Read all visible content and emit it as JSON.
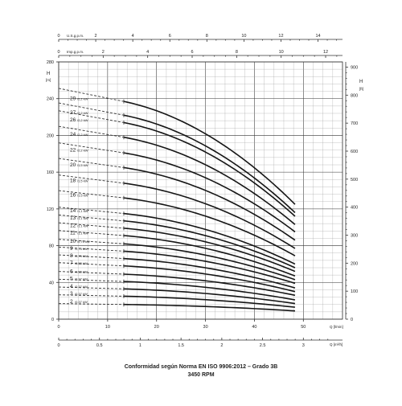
{
  "chart_data": {
    "type": "line",
    "title": "Conformidad según Norma EN ISO 9906:2012 – Grado 3B",
    "subtitle": "3450 RPM",
    "ylabel_left": "H",
    "ylabel_left_unit": "[m]",
    "ylabel_right": "H",
    "ylabel_right_unit": "[ft]",
    "xlabel_bottom": "Q [m³/h]",
    "xlabel_bottom_short": "Q [l/min]",
    "top_axis_1_label": "U.S.g.p.m.",
    "top_axis_2_label": "Imp.g.p.m.",
    "ylim_m": [
      0,
      280
    ],
    "ylim_ft": [
      0,
      918
    ],
    "xlim_lmin": [
      0,
      58
    ],
    "grid": true,
    "y_ticks_m": [
      "0",
      "40",
      "80",
      "120",
      "160",
      "200",
      "240",
      "280"
    ],
    "y_ticks_ft": [
      "0",
      "100",
      "200",
      "300",
      "400",
      "500",
      "600",
      "700",
      "800",
      "900"
    ],
    "x_ticks_lmin": [
      "0",
      "10",
      "20",
      "30",
      "40",
      "50"
    ],
    "x_ticks_m3h": [
      "0",
      "0.5",
      "1",
      "1.5",
      "2",
      "2.5",
      "3"
    ],
    "x_ticks_usgpm": [
      "0",
      "2",
      "4",
      "6",
      "8",
      "10",
      "12",
      "14"
    ],
    "x_ticks_impgpm": [
      "0",
      "2",
      "4",
      "6",
      "8",
      "10",
      "12"
    ],
    "q_range_lmin": [
      13.3,
      48.3
    ],
    "series": [
      {
        "name": "29",
        "power": "2,2 kW",
        "h_start": 237,
        "h_end": 125
      },
      {
        "name": "27",
        "power": "2,2 kW",
        "h_start": 222,
        "h_end": 116
      },
      {
        "name": "26",
        "power": "2,2 kW",
        "h_start": 214,
        "h_end": 112
      },
      {
        "name": "24",
        "power": "2,2 kW",
        "h_start": 198,
        "h_end": 103
      },
      {
        "name": "22",
        "power": "2,2 kW",
        "h_start": 181,
        "h_end": 95
      },
      {
        "name": "20",
        "power": "1,5 kW",
        "h_start": 165,
        "h_end": 86
      },
      {
        "name": "18",
        "power": "1,5 kW",
        "h_start": 148,
        "h_end": 77
      },
      {
        "name": "16",
        "power": "1,5 kW",
        "h_start": 132,
        "h_end": 69
      },
      {
        "name": "14",
        "power": "1,1 kW",
        "h_start": 115,
        "h_end": 60
      },
      {
        "name": "13",
        "power": "1,1 kW",
        "h_start": 107,
        "h_end": 56
      },
      {
        "name": "12",
        "power": "1,1 kW",
        "h_start": 99,
        "h_end": 52
      },
      {
        "name": "11",
        "power": "1,1 kW",
        "h_start": 91,
        "h_end": 47
      },
      {
        "name": "10",
        "power": "0,75 kW",
        "h_start": 82,
        "h_end": 43
      },
      {
        "name": "9",
        "power": "0,75 kW",
        "h_start": 74,
        "h_end": 39
      },
      {
        "name": "8",
        "power": "0,75 kW",
        "h_start": 66,
        "h_end": 34
      },
      {
        "name": "7",
        "power": "0,55 kW",
        "h_start": 58,
        "h_end": 30
      },
      {
        "name": "6",
        "power": "0,55 kW",
        "h_start": 49,
        "h_end": 26
      },
      {
        "name": "5",
        "power": "0,37 kW",
        "h_start": 41,
        "h_end": 21
      },
      {
        "name": "4",
        "power": "0,37 kW",
        "h_start": 33,
        "h_end": 17
      },
      {
        "name": "3",
        "power": "0,37 kW",
        "h_start": 25,
        "h_end": 13
      },
      {
        "name": "2",
        "power": "0,37 kW",
        "h_start": 16,
        "h_end": 9
      }
    ]
  }
}
